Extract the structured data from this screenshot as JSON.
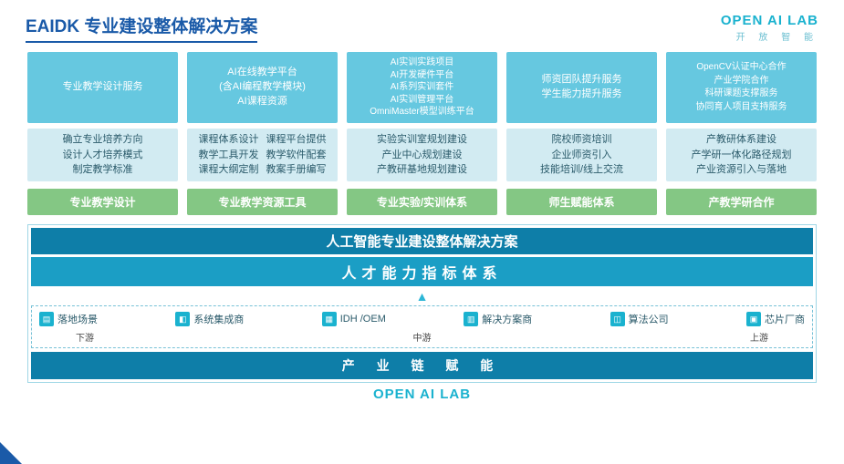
{
  "header": {
    "title": "EAIDK 专业建设整体解决方案",
    "logo": "OPEN AI LAB",
    "logo_sub": "开 放 智 能"
  },
  "columns": [
    {
      "top": [
        "专业教学设计服务"
      ],
      "mid": [
        "确立专业培养方向",
        "设计人才培养模式",
        "制定教学标准"
      ]
    },
    {
      "top": [
        "AI在线教学平台",
        "(含AI编程教学模块)",
        "AI课程资源"
      ],
      "mid_left": [
        "课程体系设计",
        "教学工具开发",
        "课程大纲定制"
      ],
      "mid_right": [
        "课程平台提供",
        "教学软件配套",
        "教案手册编写"
      ]
    },
    {
      "top": [
        "AI实训实践项目",
        "AI开发硬件平台",
        "AI系列实训套件",
        "AI实训管理平台",
        "OmniMaster模型训练平台"
      ],
      "mid": [
        "实验实训室规划建设",
        "产业中心规划建设",
        "产教研基地规划建设"
      ]
    },
    {
      "top": [
        "师资团队提升服务",
        "学生能力提升服务"
      ],
      "mid": [
        "院校师资培训",
        "企业师资引入",
        "技能培训/线上交流"
      ]
    },
    {
      "top": [
        "OpenCV认证中心合作",
        "产业学院合作",
        "科研课题支撑服务",
        "协同育人项目支持服务"
      ],
      "mid": [
        "产教研体系建设",
        "产学研一体化路径规划",
        "产业资源引入与落地"
      ]
    }
  ],
  "green": [
    "专业教学设计",
    "专业教学资源工具",
    "专业实验/实训体系",
    "师生赋能体系",
    "产教学研合作"
  ],
  "bands": {
    "dark": "人工智能专业建设整体解决方案",
    "mid": "人才能力指标体系",
    "bottom": "产 业 链 赋 能"
  },
  "chain_items": [
    {
      "icon": "▤",
      "label": "落地场景"
    },
    {
      "icon": "◧",
      "label": "系统集成商"
    },
    {
      "icon": "▦",
      "label": "IDH /OEM"
    },
    {
      "icon": "▥",
      "label": "解决方案商"
    },
    {
      "icon": "◫",
      "label": "算法公司"
    },
    {
      "icon": "▣",
      "label": "芯片厂商"
    }
  ],
  "chain_sub": [
    "下游",
    "中游",
    "上游"
  ],
  "footer_logo": "OPEN AI LAB",
  "colors": {
    "title": "#1a5aa8",
    "top_box": "#66c8e0",
    "mid_box": "#d2ebf2",
    "green": "#84c784",
    "band_dark": "#0e7ea8",
    "band_mid": "#1b9ec5",
    "accent": "#1ab2cf"
  }
}
